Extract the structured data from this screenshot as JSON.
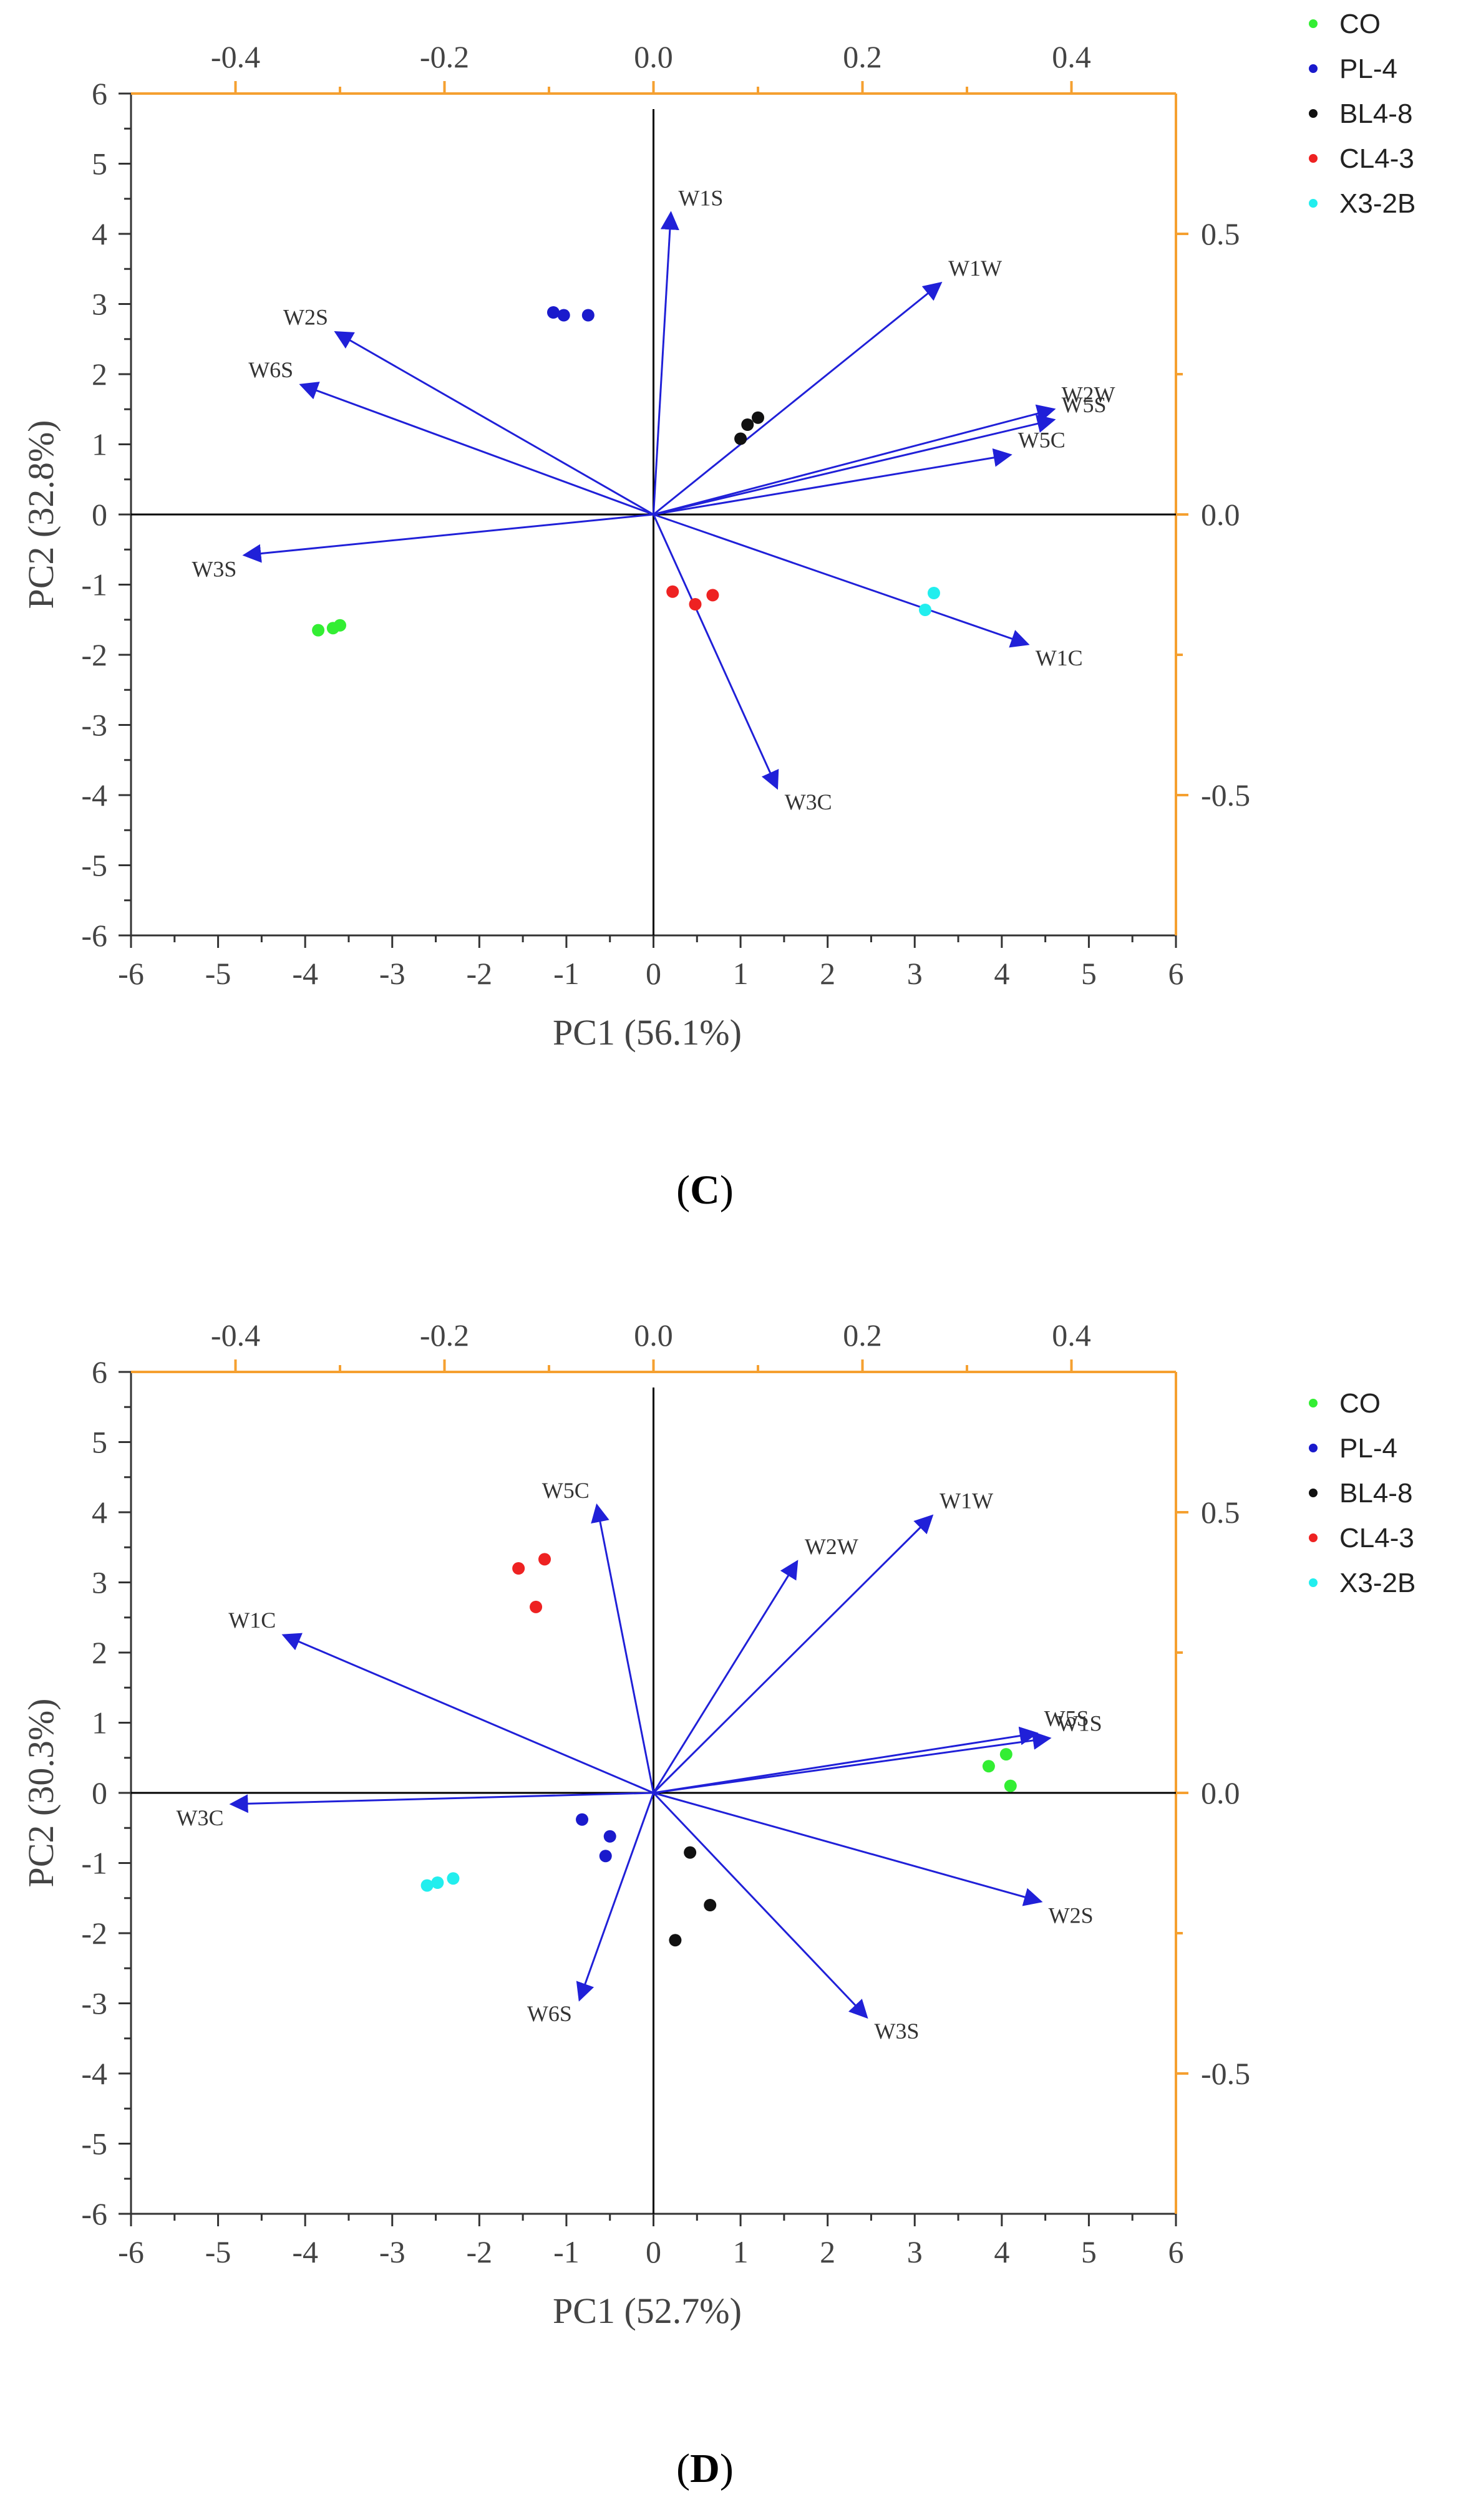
{
  "chart_data": [
    {
      "type": "scatter",
      "title": "",
      "panel_label": "C",
      "xlabel": "PC1 (56.1%)",
      "ylabel": "PC2 (32.8%)",
      "xlim": [
        -6,
        6
      ],
      "ylim": [
        -6,
        6
      ],
      "secondary_x_lim": [
        -0.5,
        0.5
      ],
      "secondary_y_lim": [
        -0.75,
        0.75
      ],
      "x_ticks": [
        "-6",
        "-5",
        "-4",
        "-3",
        "-2",
        "-1",
        "0",
        "1",
        "2",
        "3",
        "4",
        "5",
        "6"
      ],
      "y_ticks": [
        "6",
        "5",
        "4",
        "3",
        "2",
        "1",
        "0",
        "-1",
        "-2",
        "-3",
        "-4",
        "-5",
        "-6"
      ],
      "secondary_x_ticks": [
        {
          "label": "-0.4",
          "value": -0.4
        },
        {
          "label": "-0.2",
          "value": -0.2
        },
        {
          "label": "0.0",
          "value": 0.0
        },
        {
          "label": "0.2",
          "value": 0.2
        },
        {
          "label": "0.4",
          "value": 0.4
        }
      ],
      "secondary_y_ticks": [
        {
          "label": "0.5",
          "value": 0.5
        },
        {
          "label": "0.0",
          "value": 0.0
        },
        {
          "label": "-0.5",
          "value": -0.5
        }
      ],
      "legend_position": "top-right outside",
      "series": [
        {
          "name": "CO",
          "color": "#33ee33",
          "points": [
            [
              -3.85,
              -1.65
            ],
            [
              -3.68,
              -1.62
            ],
            [
              -3.6,
              -1.58
            ]
          ]
        },
        {
          "name": "PL-4",
          "color": "#1a1acc",
          "points": [
            [
              -1.15,
              2.88
            ],
            [
              -1.03,
              2.84
            ],
            [
              -0.75,
              2.84
            ]
          ]
        },
        {
          "name": "BL4-8",
          "color": "#111111",
          "points": [
            [
              1.0,
              1.08
            ],
            [
              1.08,
              1.28
            ],
            [
              1.2,
              1.38
            ]
          ]
        },
        {
          "name": "CL4-3",
          "color": "#ee2222",
          "points": [
            [
              0.22,
              -1.1
            ],
            [
              0.48,
              -1.28
            ],
            [
              0.68,
              -1.15
            ]
          ]
        },
        {
          "name": "X3-2B",
          "color": "#22eeee",
          "points": [
            [
              3.12,
              -1.36
            ],
            [
              3.22,
              -1.12
            ]
          ]
        }
      ],
      "loadings": [
        {
          "label": "W1S",
          "x": 0.2,
          "y": 4.3
        },
        {
          "label": "W1W",
          "x": 3.3,
          "y": 3.3
        },
        {
          "label": "W2S",
          "x": -3.65,
          "y": 2.6
        },
        {
          "label": "W6S",
          "x": -4.05,
          "y": 1.85
        },
        {
          "label": "W2W",
          "x": 4.6,
          "y": 1.5
        },
        {
          "label": "W5S",
          "x": 4.6,
          "y": 1.35
        },
        {
          "label": "W5C",
          "x": 4.1,
          "y": 0.85
        },
        {
          "label": "W3S",
          "x": -4.7,
          "y": -0.58
        },
        {
          "label": "W1C",
          "x": 4.3,
          "y": -1.85
        },
        {
          "label": "W3C",
          "x": 1.42,
          "y": -3.9
        }
      ]
    },
    {
      "type": "scatter",
      "title": "",
      "panel_label": "D",
      "xlabel": "PC1 (52.7%)",
      "ylabel": "PC2 (30.3%)",
      "xlim": [
        -6,
        6
      ],
      "ylim": [
        -6,
        6
      ],
      "secondary_x_lim": [
        -0.5,
        0.5
      ],
      "secondary_y_lim": [
        -0.75,
        0.75
      ],
      "x_ticks": [
        "-6",
        "-5",
        "-4",
        "-3",
        "-2",
        "-1",
        "0",
        "1",
        "2",
        "3",
        "4",
        "5",
        "6"
      ],
      "y_ticks": [
        "6",
        "5",
        "4",
        "3",
        "2",
        "1",
        "0",
        "-1",
        "-2",
        "-3",
        "-4",
        "-5",
        "-6"
      ],
      "secondary_x_ticks": [
        {
          "label": "-0.4",
          "value": -0.4
        },
        {
          "label": "-0.2",
          "value": -0.2
        },
        {
          "label": "0.0",
          "value": 0.0
        },
        {
          "label": "0.2",
          "value": 0.2
        },
        {
          "label": "0.4",
          "value": 0.4
        }
      ],
      "secondary_y_ticks": [
        {
          "label": "0.5",
          "value": 0.5
        },
        {
          "label": "0.0",
          "value": 0.0
        },
        {
          "label": "-0.5",
          "value": -0.5
        }
      ],
      "legend_position": "top-right outside",
      "series": [
        {
          "name": "CO",
          "color": "#33ee33",
          "points": [
            [
              3.85,
              0.38
            ],
            [
              4.05,
              0.55
            ],
            [
              4.1,
              0.1
            ]
          ]
        },
        {
          "name": "PL-4",
          "color": "#1a1acc",
          "points": [
            [
              -0.82,
              -0.38
            ],
            [
              -0.5,
              -0.62
            ],
            [
              -0.55,
              -0.9
            ]
          ]
        },
        {
          "name": "BL4-8",
          "color": "#111111",
          "points": [
            [
              0.42,
              -0.85
            ],
            [
              0.65,
              -1.6
            ],
            [
              0.25,
              -2.1
            ]
          ]
        },
        {
          "name": "CL4-3",
          "color": "#ee2222",
          "points": [
            [
              -1.55,
              3.2
            ],
            [
              -1.25,
              3.33
            ],
            [
              -1.35,
              2.65
            ]
          ]
        },
        {
          "name": "X3-2B",
          "color": "#22eeee",
          "points": [
            [
              -2.6,
              -1.32
            ],
            [
              -2.48,
              -1.28
            ],
            [
              -2.3,
              -1.22
            ]
          ]
        }
      ],
      "loadings": [
        {
          "label": "W5C",
          "x": -0.65,
          "y": 4.1
        },
        {
          "label": "W2W",
          "x": 1.65,
          "y": 3.3
        },
        {
          "label": "W1W",
          "x": 3.2,
          "y": 3.95
        },
        {
          "label": "W1C",
          "x": -4.25,
          "y": 2.25
        },
        {
          "label": "W5S",
          "x": 4.4,
          "y": 0.85
        },
        {
          "label": "W1S",
          "x": 4.55,
          "y": 0.78
        },
        {
          "label": "W3C",
          "x": -4.85,
          "y": -0.16
        },
        {
          "label": "W2S",
          "x": 4.45,
          "y": -1.55
        },
        {
          "label": "W3S",
          "x": 2.45,
          "y": -3.2
        },
        {
          "label": "W6S",
          "x": -0.85,
          "y": -2.95
        }
      ]
    }
  ],
  "colors": {
    "axis_primary": "#333333",
    "axis_secondary": "#f5a030",
    "vector": "#2020d8",
    "zero_line": "#000000"
  }
}
